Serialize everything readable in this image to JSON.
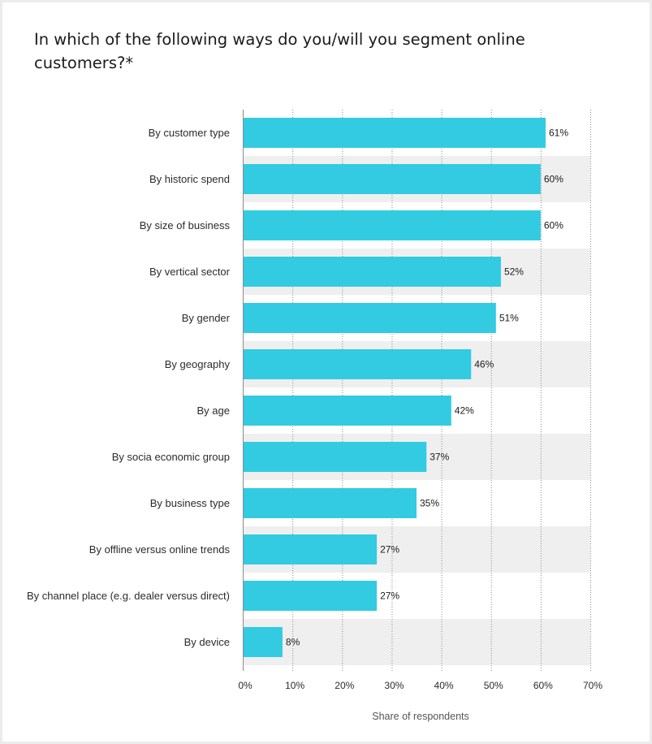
{
  "chart_data": {
    "type": "bar",
    "orientation": "horizontal",
    "title": "In which of the following ways do you/will you segment online customers?*",
    "xlabel": "Share of respondents",
    "ylabel": "",
    "categories": [
      "By customer type",
      "By historic spend",
      "By size of business",
      "By vertical sector",
      "By gender",
      "By geography",
      "By age",
      "By socia economic group",
      "By business type",
      "By offline versus online trends",
      "By channel place (e.g. dealer versus direct)",
      "By device"
    ],
    "values": [
      61,
      60,
      60,
      52,
      51,
      46,
      42,
      37,
      35,
      27,
      27,
      8
    ],
    "value_labels": [
      "61%",
      "60%",
      "60%",
      "52%",
      "51%",
      "46%",
      "42%",
      "37%",
      "35%",
      "27%",
      "27%",
      "8%"
    ],
    "xlim": [
      0,
      70
    ],
    "xticks": [
      0,
      10,
      20,
      30,
      40,
      50,
      60,
      70
    ],
    "xtick_labels": [
      "0%",
      "10%",
      "20%",
      "30%",
      "40%",
      "50%",
      "60%",
      "70%"
    ],
    "grid": true,
    "grid_style": "dotted vertical",
    "alternating_row_bands": true,
    "legend": "none",
    "colors": {
      "bar": "#32cbe2",
      "band": "#f0efef",
      "grid": "#8a8a8a",
      "background": "#ffffff"
    }
  }
}
